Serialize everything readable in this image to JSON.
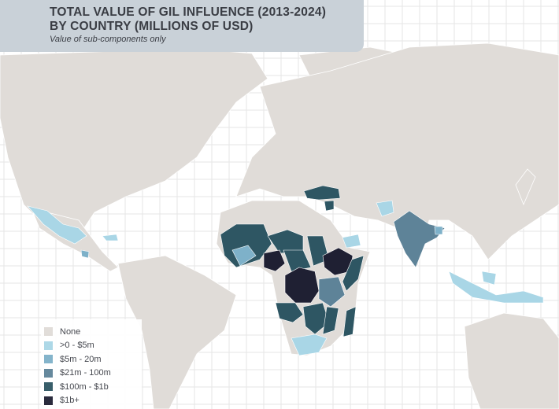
{
  "title": {
    "line1": "TOTAL VALUE OF GIL INFLUENCE (2013-2024)",
    "line2": "BY COUNTRY (MILLIONS OF USD)",
    "subtitle": "Value of sub-components only"
  },
  "legend": [
    {
      "label": "None",
      "color": "#e0dcd8"
    },
    {
      "label": ">0 - $5m",
      "color": "#a9d6e6"
    },
    {
      "label": "$5m - 20m",
      "color": "#7eb1c9"
    },
    {
      "label": "$21m - 100m",
      "color": "#5e8398"
    },
    {
      "label": "$100m - $1b",
      "color": "#2e5663"
    },
    {
      "label": "$1b+",
      "color": "#1f2033"
    }
  ]
}
